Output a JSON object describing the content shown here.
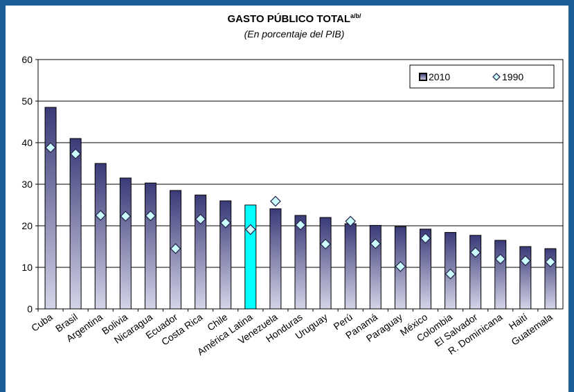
{
  "chart_data": {
    "type": "bar",
    "title": "GASTO PÚBLICO TOTAL",
    "title_note": "a/b/",
    "subtitle": "(En porcentaje del PIB)",
    "categories": [
      "Cuba",
      "Brasil",
      "Argentina",
      "Bolivia",
      "Nicaragua",
      "Ecuador",
      "Costa Rica",
      "Chile",
      "América Latina",
      "Venezuela",
      "Honduras",
      "Uruguay",
      "Perú",
      "Panamá",
      "Paraguay",
      "México",
      "Colombia",
      "El Salvador",
      "R. Dominicana",
      "Haití",
      "Guatemala"
    ],
    "series": [
      {
        "name": "2010",
        "type": "bar",
        "color": "#3a3a78",
        "point_colors": [
          "#3a3a78",
          "#3a3a78",
          "#3a3a78",
          "#3a3a78",
          "#3a3a78",
          "#3a3a78",
          "#3a3a78",
          "#3a3a78",
          "#00ffff",
          "#3a3a78",
          "#3a3a78",
          "#3a3a78",
          "#3a3a78",
          "#3a3a78",
          "#3a3a78",
          "#3a3a78",
          "#3a3a78",
          "#3a3a78",
          "#3a3a78",
          "#3a3a78",
          "#3a3a78"
        ],
        "values": [
          48.5,
          41,
          35,
          31.5,
          30.3,
          28.5,
          27.4,
          26,
          25,
          24.1,
          22.5,
          22,
          20.5,
          20.1,
          19.8,
          19.2,
          18.4,
          17.7,
          16.5,
          15,
          14.5
        ]
      },
      {
        "name": "1990",
        "type": "scatter",
        "color": "#ccffff",
        "values": [
          38.8,
          37.3,
          22.5,
          22.3,
          22.4,
          14.5,
          21.6,
          20.7,
          19.1,
          25.9,
          20.2,
          15.6,
          21.1,
          15.7,
          10.2,
          17,
          8.4,
          13.6,
          12,
          11.6,
          11.3
        ]
      }
    ],
    "ylim": [
      0,
      60
    ],
    "yticks": [
      0,
      10,
      20,
      30,
      40,
      50,
      60
    ],
    "grid": true,
    "legend": "top-right"
  }
}
